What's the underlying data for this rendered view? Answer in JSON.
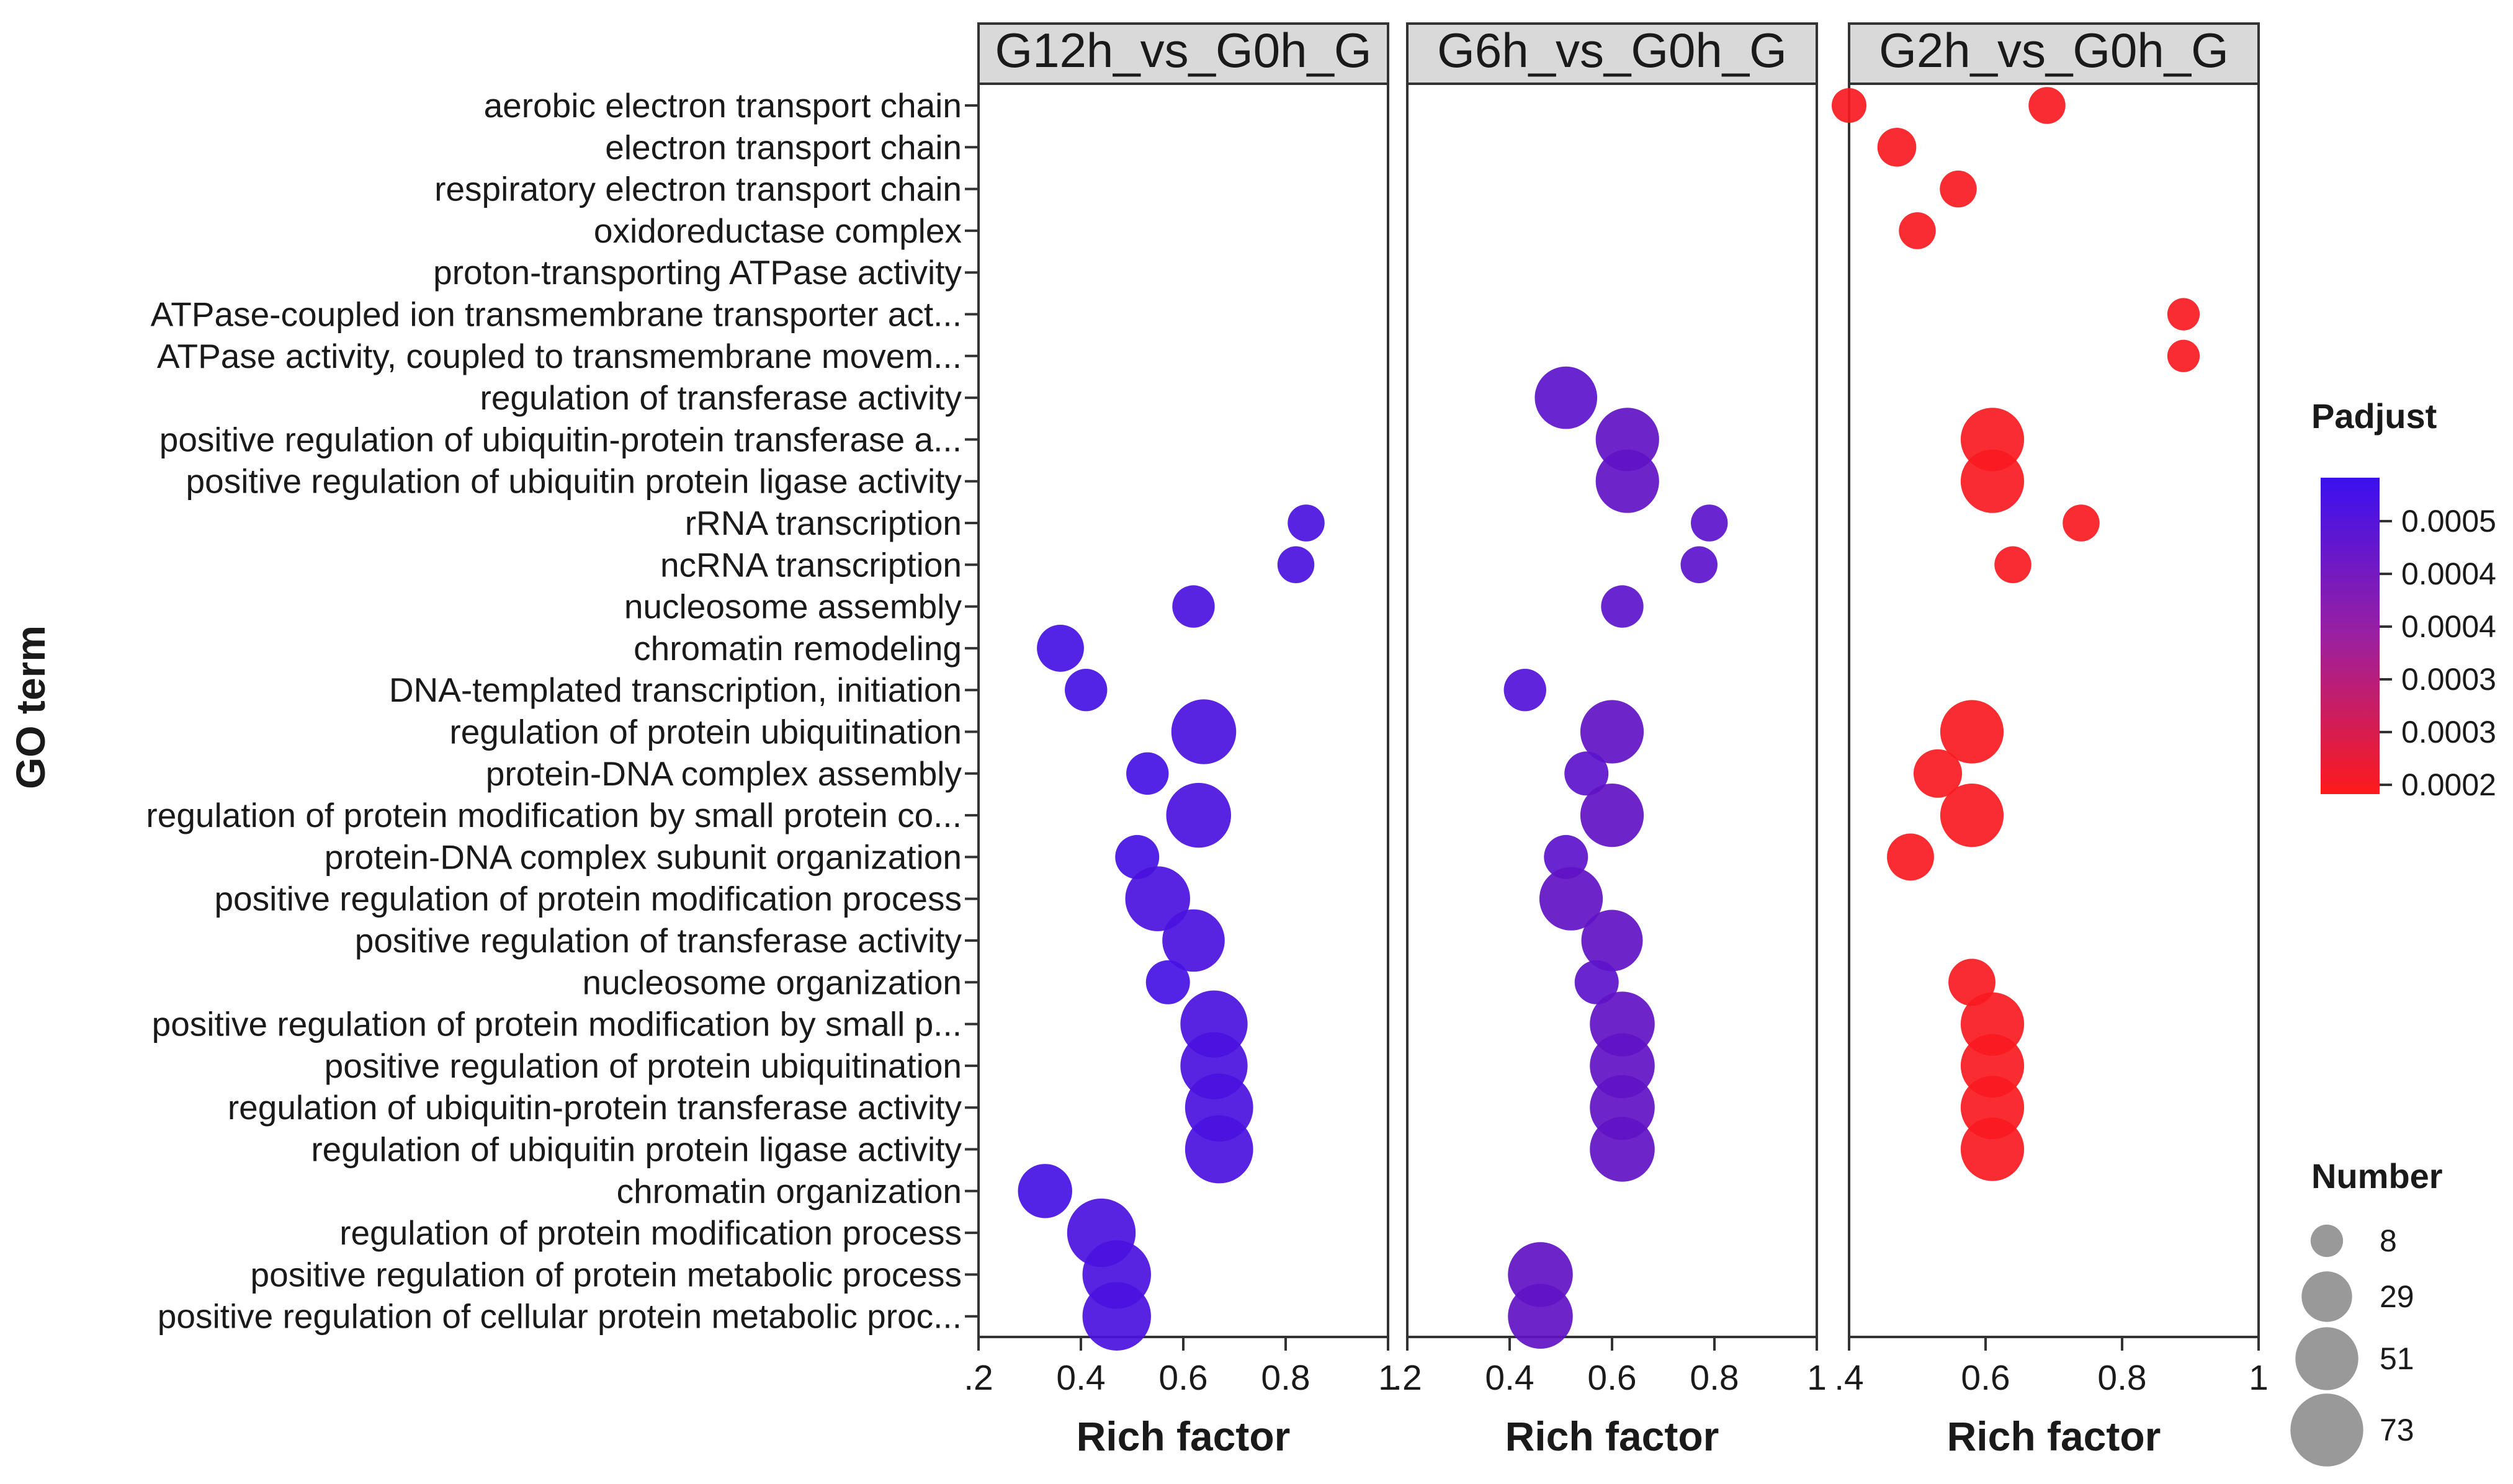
{
  "chart_data": {
    "type": "scatter",
    "y_title": "GO term",
    "x_title": "Rich factor",
    "terms": [
      "aerobic electron transport chain",
      "electron transport chain",
      "respiratory electron transport chain",
      "oxidoreductase complex",
      "proton-transporting ATPase activity",
      "ATPase-coupled ion transmembrane transporter act...",
      "ATPase activity, coupled to transmembrane movem...",
      "regulation of transferase activity",
      "positive regulation of ubiquitin-protein transferase a...",
      "positive regulation of ubiquitin protein ligase activity",
      "rRNA transcription",
      "ncRNA transcription",
      "nucleosome assembly",
      "chromatin remodeling",
      "DNA-templated transcription, initiation",
      "regulation of protein ubiquitination",
      "protein-DNA complex assembly",
      "regulation of protein modification by small protein co...",
      "protein-DNA complex subunit organization",
      "positive regulation of protein modification process",
      "positive regulation of transferase activity",
      "nucleosome organization",
      "positive regulation of protein modification by small p...",
      "positive regulation of protein ubiquitination",
      "regulation of ubiquitin-protein transferase activity",
      "regulation of ubiquitin protein ligase activity",
      "chromatin organization",
      "regulation of protein modification process",
      "positive regulation of protein metabolic process",
      "positive regulation of cellular protein metabolic proc..."
    ],
    "panels": [
      {
        "name": "G12h_vs_G0h_G",
        "xlim": [
          0.2,
          1.0
        ],
        "tick_labels": [
          ".2",
          "0.4",
          "0.6",
          "0.8",
          "1"
        ],
        "points": [
          {
            "term": 10,
            "x": 0.84,
            "count": 12,
            "padj": 0.00052
          },
          {
            "term": 11,
            "x": 0.82,
            "count": 12,
            "padj": 0.00052
          },
          {
            "term": 12,
            "x": 0.62,
            "count": 18,
            "padj": 0.00052
          },
          {
            "term": 13,
            "x": 0.36,
            "count": 24,
            "padj": 0.00053
          },
          {
            "term": 14,
            "x": 0.41,
            "count": 18,
            "padj": 0.00053
          },
          {
            "term": 15,
            "x": 0.64,
            "count": 55,
            "padj": 0.00052
          },
          {
            "term": 16,
            "x": 0.53,
            "count": 18,
            "padj": 0.00053
          },
          {
            "term": 17,
            "x": 0.63,
            "count": 55,
            "padj": 0.00052
          },
          {
            "term": 18,
            "x": 0.51,
            "count": 20,
            "padj": 0.00053
          },
          {
            "term": 19,
            "x": 0.55,
            "count": 55,
            "padj": 0.00052
          },
          {
            "term": 20,
            "x": 0.62,
            "count": 50,
            "padj": 0.00052
          },
          {
            "term": 21,
            "x": 0.57,
            "count": 20,
            "padj": 0.00053
          },
          {
            "term": 22,
            "x": 0.66,
            "count": 60,
            "padj": 0.00052
          },
          {
            "term": 23,
            "x": 0.66,
            "count": 60,
            "padj": 0.00052
          },
          {
            "term": 24,
            "x": 0.67,
            "count": 62,
            "padj": 0.00052
          },
          {
            "term": 25,
            "x": 0.67,
            "count": 62,
            "padj": 0.00052
          },
          {
            "term": 26,
            "x": 0.33,
            "count": 35,
            "padj": 0.00053
          },
          {
            "term": 27,
            "x": 0.44,
            "count": 63,
            "padj": 0.00052
          },
          {
            "term": 28,
            "x": 0.47,
            "count": 63,
            "padj": 0.00052
          },
          {
            "term": 29,
            "x": 0.47,
            "count": 63,
            "padj": 0.00052
          }
        ]
      },
      {
        "name": "G6h_vs_G0h_G",
        "xlim": [
          0.2,
          1.0
        ],
        "tick_labels": [
          ".2",
          "0.4",
          "0.6",
          "0.8",
          "1"
        ],
        "points": [
          {
            "term": 7,
            "x": 0.51,
            "count": 50,
            "padj": 0.00049
          },
          {
            "term": 8,
            "x": 0.63,
            "count": 52,
            "padj": 0.00048
          },
          {
            "term": 9,
            "x": 0.63,
            "count": 52,
            "padj": 0.00048
          },
          {
            "term": 10,
            "x": 0.79,
            "count": 12,
            "padj": 0.00049
          },
          {
            "term": 11,
            "x": 0.77,
            "count": 12,
            "padj": 0.00049
          },
          {
            "term": 12,
            "x": 0.62,
            "count": 18,
            "padj": 0.00049
          },
          {
            "term": 14,
            "x": 0.43,
            "count": 18,
            "padj": 0.00051
          },
          {
            "term": 15,
            "x": 0.6,
            "count": 52,
            "padj": 0.00048
          },
          {
            "term": 16,
            "x": 0.55,
            "count": 20,
            "padj": 0.00049
          },
          {
            "term": 17,
            "x": 0.6,
            "count": 52,
            "padj": 0.00048
          },
          {
            "term": 18,
            "x": 0.51,
            "count": 20,
            "padj": 0.00049
          },
          {
            "term": 19,
            "x": 0.52,
            "count": 52,
            "padj": 0.00048
          },
          {
            "term": 20,
            "x": 0.6,
            "count": 48,
            "padj": 0.00048
          },
          {
            "term": 21,
            "x": 0.57,
            "count": 20,
            "padj": 0.00049
          },
          {
            "term": 22,
            "x": 0.62,
            "count": 55,
            "padj": 0.00048
          },
          {
            "term": 23,
            "x": 0.62,
            "count": 55,
            "padj": 0.00048
          },
          {
            "term": 24,
            "x": 0.62,
            "count": 55,
            "padj": 0.00048
          },
          {
            "term": 25,
            "x": 0.62,
            "count": 55,
            "padj": 0.00048
          },
          {
            "term": 28,
            "x": 0.46,
            "count": 55,
            "padj": 0.00048
          },
          {
            "term": 29,
            "x": 0.46,
            "count": 55,
            "padj": 0.00048
          }
        ]
      },
      {
        "name": "G2h_vs_G0h_G",
        "xlim": [
          0.4,
          1.0
        ],
        "tick_labels": ".4 0.6 0.8 1",
        "points": [
          {
            "term": 0,
            "x": 0.4,
            "count": 10,
            "padj": 0.00021
          },
          {
            "term": 0,
            "x": 0.69,
            "count": 12,
            "padj": 0.00021
          },
          {
            "term": 1,
            "x": 0.47,
            "count": 14,
            "padj": 0.00021
          },
          {
            "term": 2,
            "x": 0.56,
            "count": 12,
            "padj": 0.00021
          },
          {
            "term": 3,
            "x": 0.5,
            "count": 12,
            "padj": 0.00021
          },
          {
            "term": 5,
            "x": 0.89,
            "count": 8,
            "padj": 0.00021
          },
          {
            "term": 6,
            "x": 0.89,
            "count": 8,
            "padj": 0.00021
          },
          {
            "term": 8,
            "x": 0.61,
            "count": 52,
            "padj": 0.00021
          },
          {
            "term": 9,
            "x": 0.61,
            "count": 52,
            "padj": 0.00021
          },
          {
            "term": 10,
            "x": 0.74,
            "count": 12,
            "padj": 0.00021
          },
          {
            "term": 11,
            "x": 0.64,
            "count": 12,
            "padj": 0.00021
          },
          {
            "term": 15,
            "x": 0.58,
            "count": 52,
            "padj": 0.00021
          },
          {
            "term": 16,
            "x": 0.53,
            "count": 26,
            "padj": 0.00021
          },
          {
            "term": 17,
            "x": 0.58,
            "count": 52,
            "padj": 0.00021
          },
          {
            "term": 18,
            "x": 0.49,
            "count": 24,
            "padj": 0.00021
          },
          {
            "term": 21,
            "x": 0.58,
            "count": 24,
            "padj": 0.00021
          },
          {
            "term": 22,
            "x": 0.61,
            "count": 52,
            "padj": 0.00021
          },
          {
            "term": 23,
            "x": 0.61,
            "count": 52,
            "padj": 0.00021
          },
          {
            "term": 24,
            "x": 0.61,
            "count": 52,
            "padj": 0.00021
          },
          {
            "term": 25,
            "x": 0.61,
            "count": 52,
            "padj": 0.00021
          }
        ]
      }
    ],
    "color_legend": {
      "title": "Padjust",
      "labels": [
        "0.0005",
        "0.0004",
        "0.0004",
        "0.0003",
        "0.0003",
        "0.0002"
      ],
      "low_color": "#ff1a1a",
      "high_color": "#3a10f0",
      "range": [
        0.0002,
        0.00055
      ]
    },
    "size_legend": {
      "title": "Number",
      "values": [
        8,
        29,
        51,
        73
      ]
    }
  }
}
